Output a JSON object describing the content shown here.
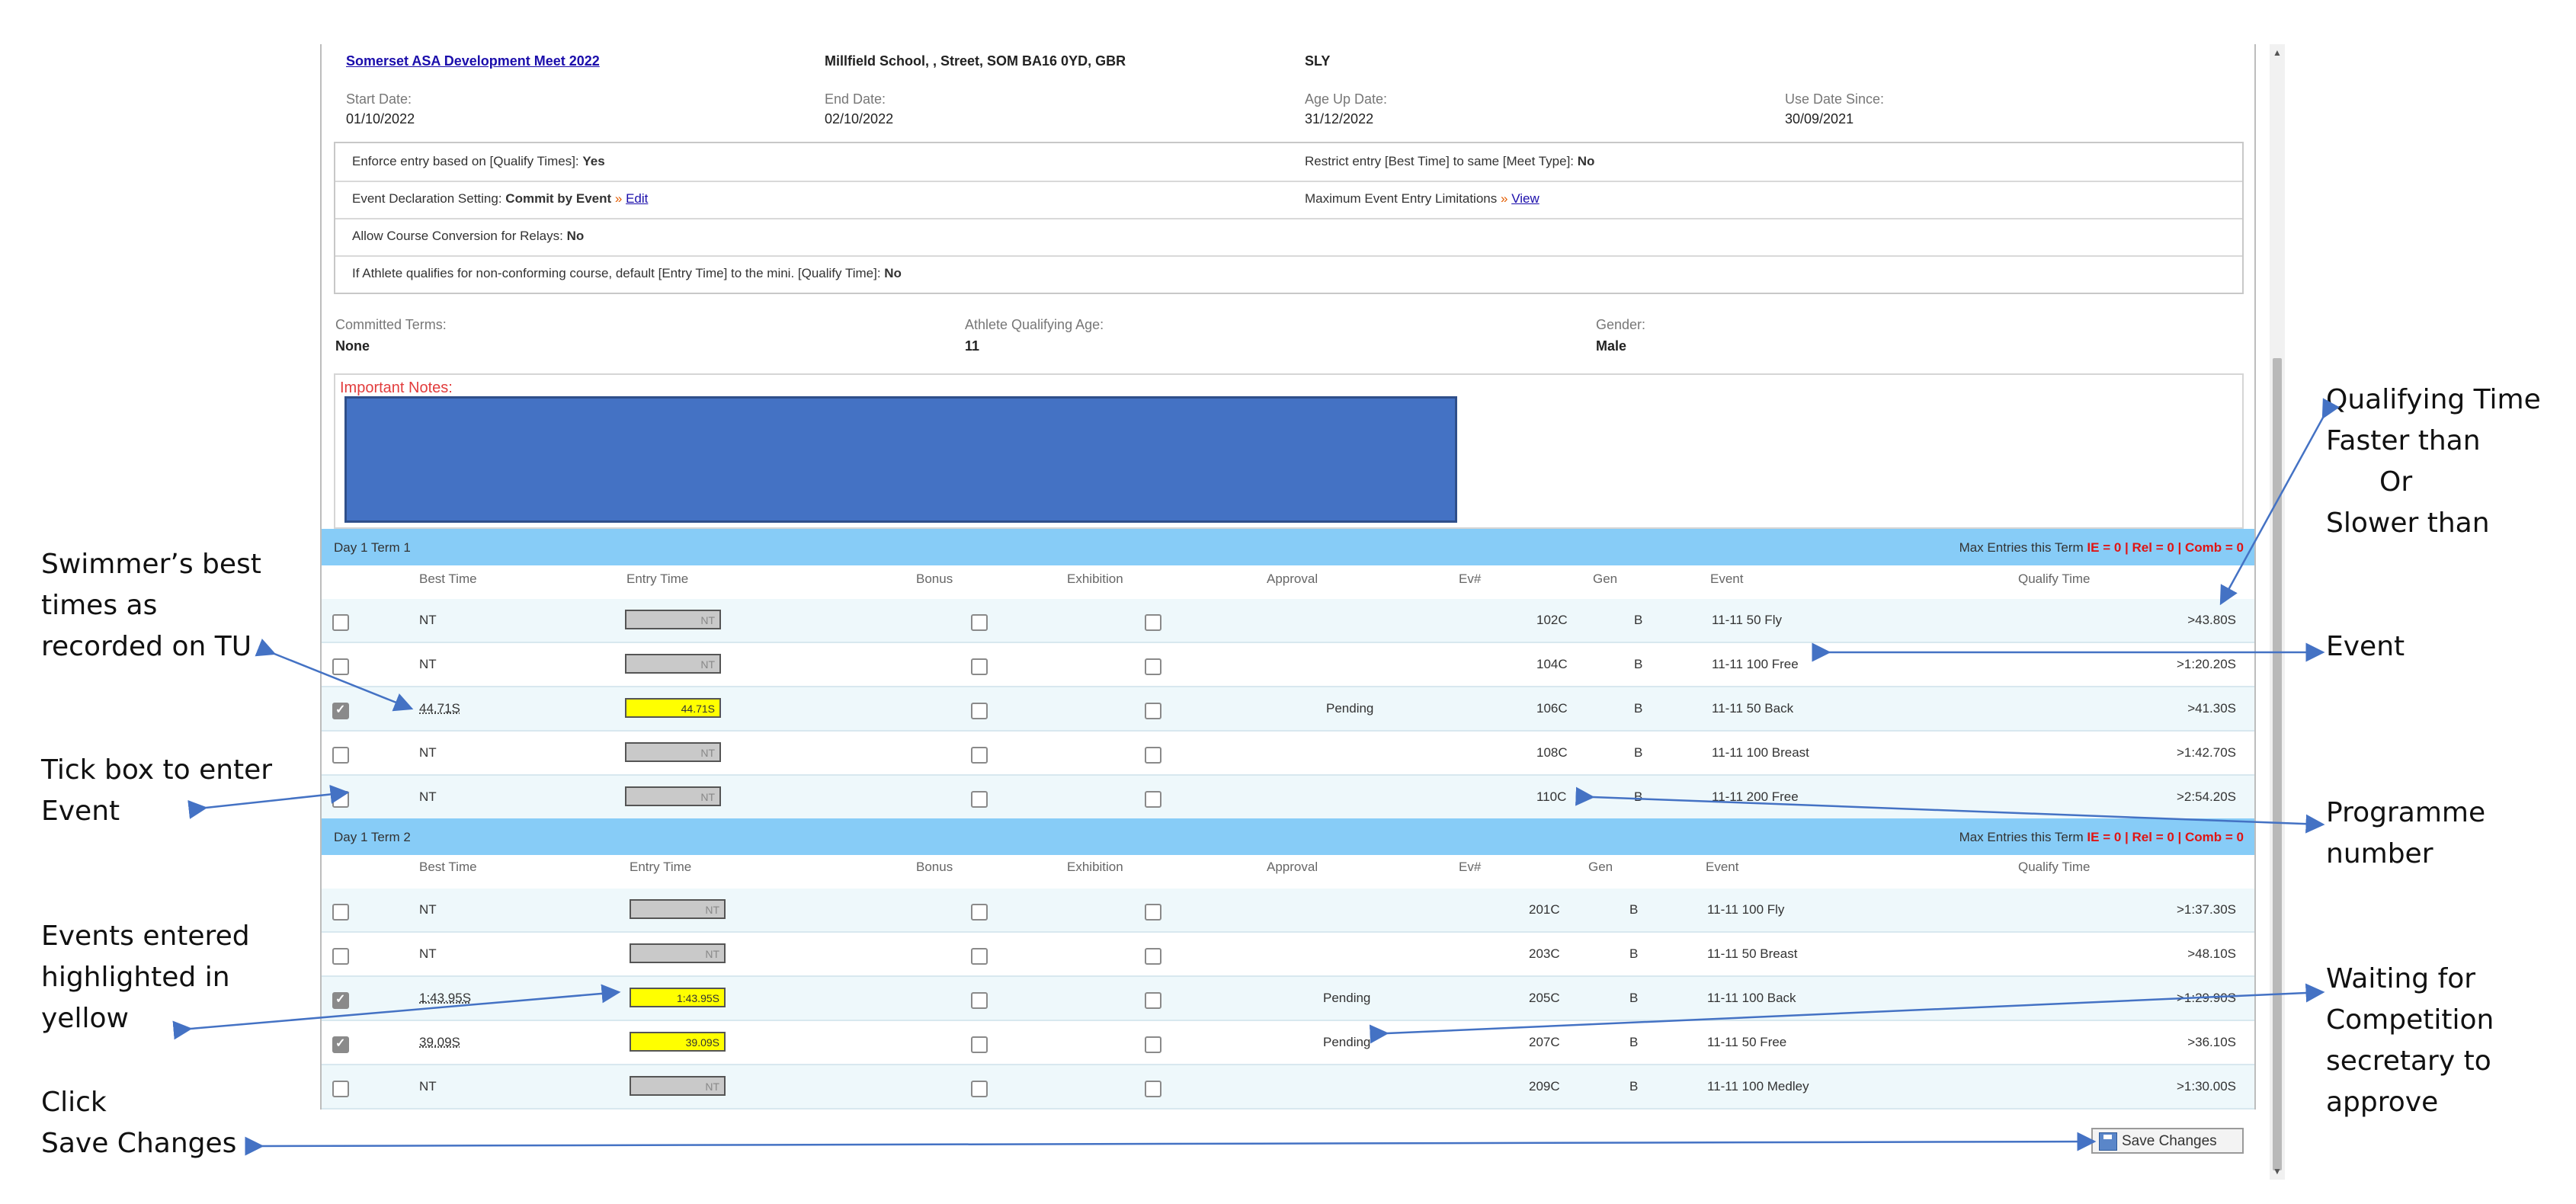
{
  "meet": {
    "name": "Somerset ASA Development Meet 2022",
    "location": "Millfield School, , Street, SOM BA16 0YD, GBR",
    "code": "SLY"
  },
  "dates": {
    "start_label": "Start Date:",
    "start_value": "01/10/2022",
    "end_label": "End Date:",
    "end_value": "02/10/2022",
    "ageup_label": "Age Up Date:",
    "ageup_value": "31/12/2022",
    "use_label": "Use Date Since:",
    "use_value": "30/09/2021"
  },
  "settings": {
    "enforce_label": "Enforce entry based on [Qualify Times]:",
    "enforce_value": "Yes",
    "restrict_label": "Restrict entry [Best Time] to same [Meet Type]:",
    "restrict_value": "No",
    "declaration_label": "Event Declaration Setting:",
    "declaration_value": "Commit by Event",
    "declaration_link": "Edit",
    "max_limits_label": "Maximum Event Entry Limitations",
    "max_limits_link": "View",
    "course_conv_label": "Allow Course Conversion for Relays:",
    "course_conv_value": "No",
    "nonconform_label": "If Athlete qualifies for non-conforming course, default [Entry Time] to the mini. [Qualify Time]:",
    "nonconform_value": "No"
  },
  "athlete": {
    "committed_label": "Committed Terms:",
    "committed_value": "None",
    "age_label": "Athlete Qualifying Age:",
    "age_value": "11",
    "gender_label": "Gender:",
    "gender_value": "Male"
  },
  "notes": {
    "title": "Important Notes:"
  },
  "columns": {
    "best_time": "Best Time",
    "entry_time": "Entry Time",
    "bonus": "Bonus",
    "exhibition": "Exhibition",
    "approval": "Approval",
    "ev_num": "Ev#",
    "gen": "Gen",
    "event": "Event",
    "qualify_time": "Qualify Time"
  },
  "terms": [
    {
      "name": "Day 1 Term 1",
      "max_prefix": "Max Entries this Term",
      "max_values": "IE = 0 | Rel = 0 | Comb = 0",
      "rows": [
        {
          "checked": false,
          "best": "NT",
          "entry": "NT",
          "approval": "",
          "ev": "102C",
          "gen": "B",
          "event": "11-11 50 Fly",
          "qualify": ">43.80S"
        },
        {
          "checked": false,
          "best": "NT",
          "entry": "NT",
          "approval": "",
          "ev": "104C",
          "gen": "B",
          "event": "11-11 100 Free",
          "qualify": ">1:20.20S"
        },
        {
          "checked": true,
          "best": "44.71S",
          "entry": "44.71S",
          "approval": "Pending",
          "ev": "106C",
          "gen": "B",
          "event": "11-11 50 Back",
          "qualify": ">41.30S"
        },
        {
          "checked": false,
          "best": "NT",
          "entry": "NT",
          "approval": "",
          "ev": "108C",
          "gen": "B",
          "event": "11-11 100 Breast",
          "qualify": ">1:42.70S"
        },
        {
          "checked": false,
          "best": "NT",
          "entry": "NT",
          "approval": "",
          "ev": "110C",
          "gen": "B",
          "event": "11-11 200 Free",
          "qualify": ">2:54.20S"
        }
      ]
    },
    {
      "name": "Day 1 Term 2",
      "max_prefix": "Max Entries this Term",
      "max_values": "IE = 0 | Rel = 0 | Comb = 0",
      "rows": [
        {
          "checked": false,
          "best": "NT",
          "entry": "NT",
          "approval": "",
          "ev": "201C",
          "gen": "B",
          "event": "11-11 100 Fly",
          "qualify": ">1:37.30S"
        },
        {
          "checked": false,
          "best": "NT",
          "entry": "NT",
          "approval": "",
          "ev": "203C",
          "gen": "B",
          "event": "11-11 50 Breast",
          "qualify": ">48.10S"
        },
        {
          "checked": true,
          "best": "1:43.95S",
          "entry": "1:43.95S",
          "approval": "Pending",
          "ev": "205C",
          "gen": "B",
          "event": "11-11 100 Back",
          "qualify": ">1:29.90S"
        },
        {
          "checked": true,
          "best": "39.09S",
          "entry": "39.09S",
          "approval": "Pending",
          "ev": "207C",
          "gen": "B",
          "event": "11-11 50 Free",
          "qualify": ">36.10S"
        },
        {
          "checked": false,
          "best": "NT",
          "entry": "NT",
          "approval": "",
          "ev": "209C",
          "gen": "B",
          "event": "11-11 100 Medley",
          "qualify": ">1:30.00S"
        }
      ]
    }
  ],
  "save_button": "Save Changes",
  "callouts": {
    "best_times": "Swimmer’s best\ntimes as\nrecorded on TU",
    "tick_box": "Tick box to enter\nEvent",
    "highlighted": "Events entered\nhighlighted in\nyellow",
    "save": "Click\nSave Changes",
    "qualifying": "Qualifying Time\nFaster than",
    "or": "Or",
    "slower": "Slower than",
    "event": "Event",
    "programme": "Programme\nnumber",
    "waiting": "Waiting for\nCompetition\nsecretary to\napprove"
  },
  "colors": {
    "term_bar": "#87ccf7",
    "entry_highlight": "#ffff00",
    "notes_block": "#4472c4",
    "arrow": "#4472c4",
    "max_red": "#e01414"
  }
}
